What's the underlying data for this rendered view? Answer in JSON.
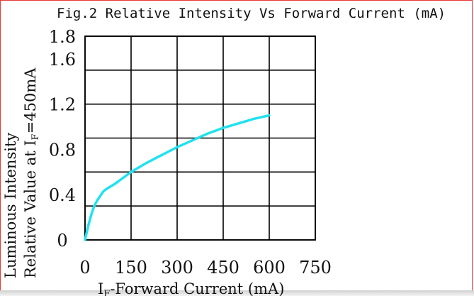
{
  "chart_data": {
    "type": "line",
    "title": "Fig.2 Relative Intensity Vs Forward Current (mA)",
    "xlabel_prefix": "I",
    "xlabel_sub": "F",
    "xlabel_rest": "-Forward Current (mA)",
    "ylabel_line1": "Luminous Intensity",
    "ylabel_line2_prefix": "Relative Value at I",
    "ylabel_line2_sub": "F",
    "ylabel_line2_rest": "=450mA",
    "xlim": [
      0,
      750
    ],
    "ylim": [
      0,
      1.8
    ],
    "x_ticks": [
      0,
      150,
      300,
      450,
      600,
      750
    ],
    "x_tick_labels": [
      "0",
      "150",
      "300",
      "450",
      "600",
      "750"
    ],
    "y_gridlines": [
      0,
      0.3,
      0.6,
      0.9,
      1.2,
      1.5,
      1.8
    ],
    "y_tick_labels": [
      {
        "label": "0",
        "value": 0
      },
      {
        "label": "0.4",
        "value": 0.4
      },
      {
        "label": "0.8",
        "value": 0.8
      },
      {
        "label": "1.2",
        "value": 1.2
      },
      {
        "label": "1.6",
        "value": 1.6
      },
      {
        "label": "1.8",
        "value": 1.8
      }
    ],
    "grid": true,
    "series": [
      {
        "color": "#22e1ee",
        "x": [
          0,
          10,
          20,
          30,
          40,
          50,
          60,
          70,
          100,
          150,
          200,
          250,
          300,
          350,
          400,
          450,
          500,
          550,
          600
        ],
        "y": [
          0,
          0.12,
          0.22,
          0.3,
          0.35,
          0.39,
          0.43,
          0.45,
          0.5,
          0.6,
          0.68,
          0.75,
          0.82,
          0.88,
          0.94,
          0.99,
          1.03,
          1.07,
          1.1
        ]
      }
    ]
  }
}
